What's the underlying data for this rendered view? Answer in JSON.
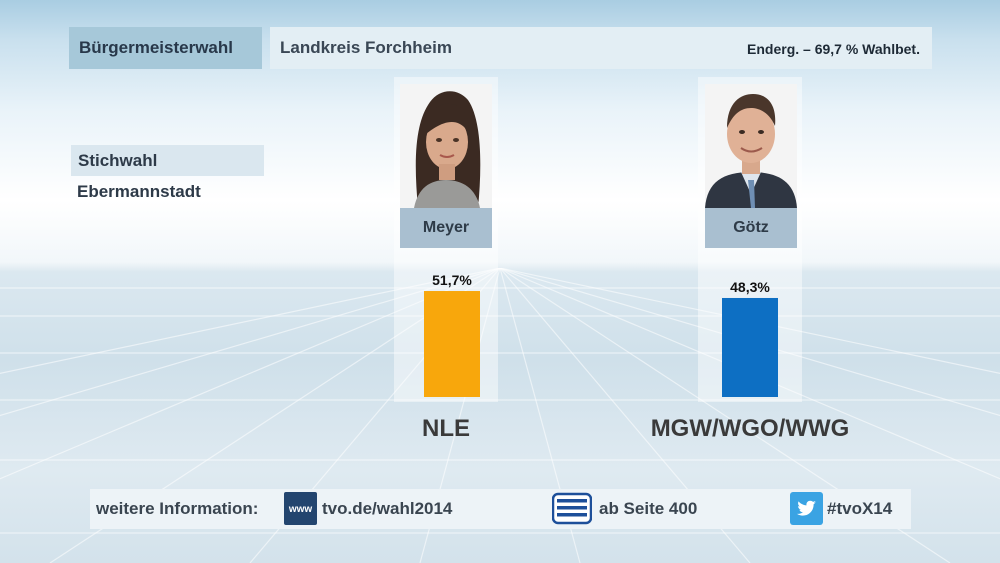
{
  "header": {
    "election": "Bürgermeisterwahl",
    "region": "Landkreis Forchheim",
    "status": "Enderg. – 69,7 % Wahlbet."
  },
  "subheader": {
    "round": "Stichwahl",
    "municipality": "Ebermannstadt"
  },
  "chart_data": {
    "type": "bar",
    "categories": [
      "Meyer",
      "Götz"
    ],
    "values": [
      51.7,
      48.3
    ],
    "value_labels": [
      "51,7%",
      "48,3%"
    ],
    "parties": [
      "NLE",
      "MGW/WGO/WWG"
    ],
    "colors": [
      "#f8a70c",
      "#0d6fc3"
    ],
    "ylim": [
      0,
      100
    ]
  },
  "footer": {
    "label": "weitere Information:",
    "www_icon": "www",
    "web": "tvo.de/wahl2014",
    "teletext": "ab Seite 400",
    "hashtag": "#tvoX14"
  },
  "icons": {
    "web": "www-icon",
    "teletext": "teletext-icon",
    "social": "twitter-bird-icon"
  }
}
